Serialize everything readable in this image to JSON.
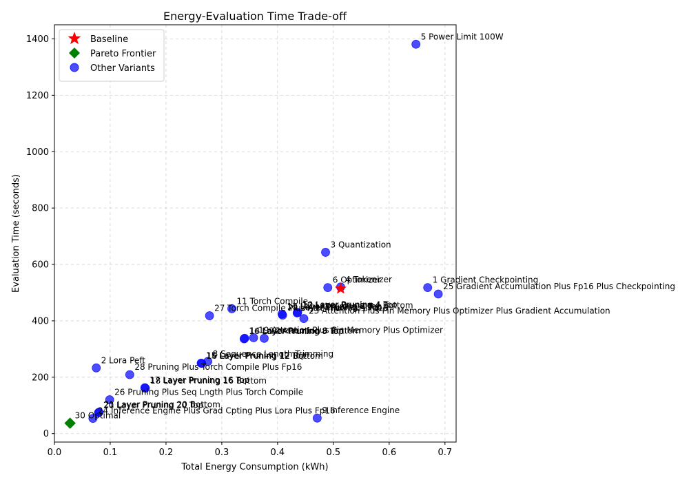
{
  "chart_data": {
    "type": "scatter",
    "title": "Energy-Evaluation Time Trade-off",
    "xlabel": "Total Energy Consumption (kWh)",
    "ylabel": "Evaluation Time (seconds)",
    "xlim": [
      0.0,
      0.72
    ],
    "ylim": [
      -30,
      1450
    ],
    "xticks": [
      0.0,
      0.1,
      0.2,
      0.3,
      0.4,
      0.5,
      0.6,
      0.7
    ],
    "yticks": [
      0,
      200,
      400,
      600,
      800,
      1000,
      1200,
      1400
    ],
    "xtick_labels": [
      "0.0",
      "0.1",
      "0.2",
      "0.3",
      "0.4",
      "0.5",
      "0.6",
      "0.7"
    ],
    "ytick_labels": [
      "0",
      "200",
      "400",
      "600",
      "800",
      "1000",
      "1200",
      "1400"
    ],
    "grid": true,
    "legend_position": "top-left",
    "legend": [
      {
        "label": "Baseline",
        "marker": "star",
        "color": "#ff0000"
      },
      {
        "label": "Pareto Frontier",
        "marker": "diamond",
        "color": "#008000"
      },
      {
        "label": "Other Variants",
        "marker": "circle",
        "color": "#0000ff"
      }
    ],
    "series": [
      {
        "name": "Other Variants",
        "color": "#0000ff",
        "points": [
          {
            "label": "1 Gradient Checkpointing",
            "x": 0.669,
            "y": 518
          },
          {
            "label": "2 Lora Peft",
            "x": 0.075,
            "y": 233
          },
          {
            "label": "3 Quantization",
            "x": 0.486,
            "y": 643
          },
          {
            "label": "4 Tokenizer",
            "x": 0.513,
            "y": 520
          },
          {
            "label": "5 Power Limit 100W",
            "x": 0.648,
            "y": 1381
          },
          {
            "label": "6 Optimizer",
            "x": 0.49,
            "y": 518
          },
          {
            "label": "8 Sequence Length Trimming",
            "x": 0.275,
            "y": 256
          },
          {
            "label": "9 Inference Engine",
            "x": 0.471,
            "y": 55
          },
          {
            "label": "10 Layer Pruning 4 Top",
            "x": 0.436,
            "y": 430
          },
          {
            "label": "11 Torch Compile",
            "x": 0.318,
            "y": 443
          },
          {
            "label": "12 Layer Pruning 4 Bottom",
            "x": 0.435,
            "y": 428
          },
          {
            "label": "13 Layer Pruning 8 Top",
            "x": 0.408,
            "y": 424
          },
          {
            "label": "14 Layer Pruning 8 Bottom",
            "x": 0.341,
            "y": 338
          },
          {
            "label": "15 Layer Pruning 12 Top",
            "x": 0.263,
            "y": 250
          },
          {
            "label": "16 Layer Pruning 12 Bottom",
            "x": 0.264,
            "y": 249
          },
          {
            "label": "17 Layer Pruning 16 Top",
            "x": 0.162,
            "y": 163
          },
          {
            "label": "18 Layer Pruning 16 Bottom",
            "x": 0.163,
            "y": 161
          },
          {
            "label": "19 Attention Plus Pin Memory Plus Optimizer",
            "x": 0.357,
            "y": 340
          },
          {
            "label": "20 Layer Pruning 20 Top",
            "x": 0.079,
            "y": 74
          },
          {
            "label": "21 Layer Pruning 20 Bottom",
            "x": 0.08,
            "y": 76
          },
          {
            "label": "22 Attention",
            "x": 0.376,
            "y": 338
          },
          {
            "label": "23 Attention Plus Pin Memory Plus Optimizer Plus Gradient Accumulation",
            "x": 0.447,
            "y": 408
          },
          {
            "label": "24 Inference Engine Plus Grad Cpting Plus Lora Plus Fp16",
            "x": 0.069,
            "y": 54
          },
          {
            "label": "25 Gradient Accumulation Plus Fp16 Plus Checkpointing",
            "x": 0.688,
            "y": 495
          },
          {
            "label": "26 Pruning Plus Seq Lngth Plus Torch Compile",
            "x": 0.099,
            "y": 120
          },
          {
            "label": "27 Torch Compile Plus Attention Plus Fp16",
            "x": 0.278,
            "y": 418
          },
          {
            "label": "28 Pruning Plus Torch Compile Plus Fp16",
            "x": 0.135,
            "y": 209
          },
          {
            "label": "29 Layer Pruning 4 Top",
            "x": 0.409,
            "y": 420
          },
          {
            "label": "16 Layer Pruning 8 Top",
            "x": 0.34,
            "y": 336
          }
        ]
      },
      {
        "name": "Baseline",
        "color": "#ff0000",
        "points": [
          {
            "label": "",
            "x": 0.513,
            "y": 514
          }
        ]
      },
      {
        "name": "Pareto Frontier",
        "color": "#008000",
        "points": [
          {
            "label": "30 Optimal",
            "x": 0.028,
            "y": 37
          }
        ]
      }
    ]
  }
}
